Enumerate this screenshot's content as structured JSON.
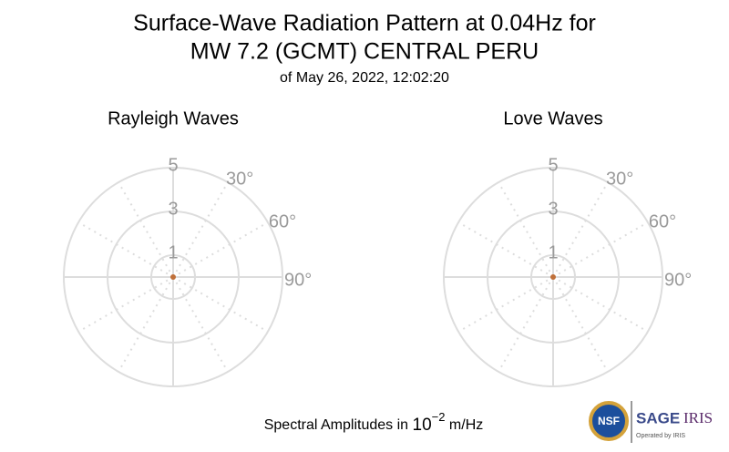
{
  "title": [
    "Surface-Wave Radiation Pattern at 0.04Hz for",
    "MW 7.2 (GCMT) CENTRAL PERU"
  ],
  "subtitle": "of May 26, 2022, 12:02:20",
  "footer": {
    "text": "Spectral Amplitudes in",
    "base": "10",
    "exponent": "−2",
    "unit": "m/Hz"
  },
  "logos": {
    "nsf": "NSF",
    "sage": "SAGE",
    "iris": "IRIS",
    "operator": "Operated by IRIS"
  },
  "chart_data": [
    {
      "type": "polar",
      "title": "Rayleigh Waves",
      "rlim": [
        0,
        5
      ],
      "rticks": [
        1,
        3,
        5
      ],
      "thetaticks": [
        {
          "value": 30,
          "label": "30°"
        },
        {
          "value": 60,
          "label": "60°"
        },
        {
          "value": 90,
          "label": "90°"
        }
      ],
      "series": [
        {
          "color": "#c0703a",
          "r": [
            0
          ],
          "theta": [
            0
          ]
        }
      ]
    },
    {
      "type": "polar",
      "title": "Love Waves",
      "rlim": [
        0,
        5
      ],
      "rticks": [
        1,
        3,
        5
      ],
      "thetaticks": [
        {
          "value": 30,
          "label": "30°"
        },
        {
          "value": 60,
          "label": "60°"
        },
        {
          "value": 90,
          "label": "90°"
        }
      ],
      "series": [
        {
          "color": "#c0703a",
          "r": [
            0
          ],
          "theta": [
            0
          ]
        }
      ]
    }
  ]
}
